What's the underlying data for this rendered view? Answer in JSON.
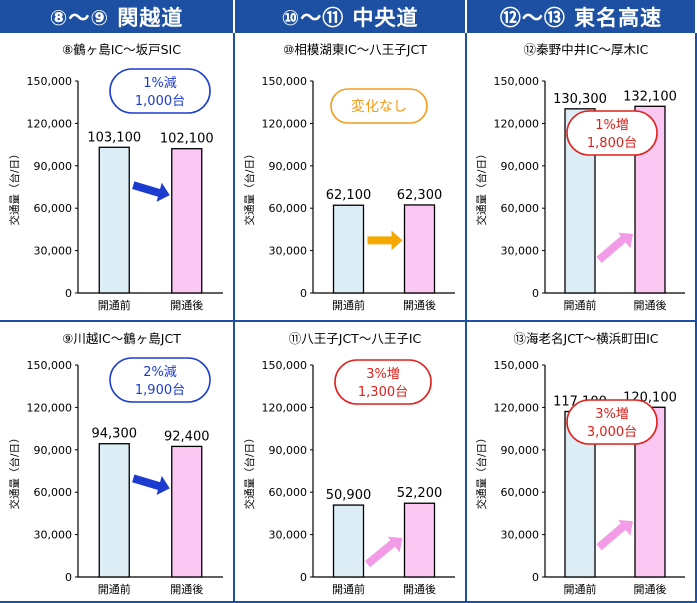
{
  "headers": [
    "⑧～⑨ 関越道",
    "⑩～⑪ 中央道",
    "⑫～⑬ 東名高速"
  ],
  "colors": {
    "header_bg": "#1d50a3",
    "bar_before": "#dcedf5",
    "bar_after": "#fbc8f4",
    "arrow_decrease": "#1c3ccf",
    "arrow_flat": "#f5a800",
    "arrow_increase": "#f39be6",
    "badge_blue": "#1c3ccf",
    "badge_orange": "#f29b1d",
    "badge_red": "#e0201a"
  },
  "chart_data": [
    {
      "type": "bar",
      "title": "⑧鶴ヶ島IC～坂戸SIC",
      "ylabel": "交通量（台/日）",
      "categories": [
        "開通前",
        "開通後"
      ],
      "values": [
        103100,
        102100
      ],
      "value_labels": [
        "103,100",
        "102,100"
      ],
      "ylim": [
        0,
        150000
      ],
      "yticks": [
        "0",
        "30,000",
        "60,000",
        "90,000",
        "120,000",
        "150,000"
      ],
      "badge": [
        "1%減",
        "1,000台"
      ],
      "trend": "decrease"
    },
    {
      "type": "bar",
      "title": "⑩相模湖東IC～八王子JCT",
      "ylabel": "交通量（台/日）",
      "categories": [
        "開通前",
        "開通後"
      ],
      "values": [
        62100,
        62300
      ],
      "value_labels": [
        "62,100",
        "62,300"
      ],
      "ylim": [
        0,
        150000
      ],
      "yticks": [
        "0",
        "30,000",
        "60,000",
        "90,000",
        "120,000",
        "150,000"
      ],
      "badge": [
        "変化なし"
      ],
      "trend": "flat"
    },
    {
      "type": "bar",
      "title": "⑫秦野中井IC～厚木IC",
      "ylabel": "交通量（台/日）",
      "categories": [
        "開通前",
        "開通後"
      ],
      "values": [
        130300,
        132100
      ],
      "value_labels": [
        "130,300",
        "132,100"
      ],
      "ylim": [
        0,
        150000
      ],
      "yticks": [
        "0",
        "30,000",
        "60,000",
        "90,000",
        "120,000",
        "150,000"
      ],
      "badge": [
        "1%増",
        "1,800台"
      ],
      "trend": "increase"
    },
    {
      "type": "bar",
      "title": "⑨川越IC～鶴ヶ島JCT",
      "ylabel": "交通量（台/日）",
      "categories": [
        "開通前",
        "開通後"
      ],
      "values": [
        94300,
        92400
      ],
      "value_labels": [
        "94,300",
        "92,400"
      ],
      "ylim": [
        0,
        150000
      ],
      "yticks": [
        "0",
        "30,000",
        "60,000",
        "90,000",
        "120,000",
        "150,000"
      ],
      "badge": [
        "2%減",
        "1,900台"
      ],
      "trend": "decrease"
    },
    {
      "type": "bar",
      "title": "⑪八王子JCT～八王子IC",
      "ylabel": "交通量（台/日）",
      "categories": [
        "開通前",
        "開通後"
      ],
      "values": [
        50900,
        52200
      ],
      "value_labels": [
        "50,900",
        "52,200"
      ],
      "ylim": [
        0,
        150000
      ],
      "yticks": [
        "0",
        "30,000",
        "60,000",
        "90,000",
        "120,000",
        "150,000"
      ],
      "badge": [
        "3%増",
        "1,300台"
      ],
      "trend": "increase"
    },
    {
      "type": "bar",
      "title": "⑬海老名JCT～横浜町田IC",
      "ylabel": "交通量（台/日）",
      "categories": [
        "開通前",
        "開通後"
      ],
      "values": [
        117100,
        120100
      ],
      "value_labels": [
        "117,100",
        "120,100"
      ],
      "ylim": [
        0,
        150000
      ],
      "yticks": [
        "0",
        "30,000",
        "60,000",
        "90,000",
        "120,000",
        "150,000"
      ],
      "badge": [
        "3%増",
        "3,000台"
      ],
      "trend": "increase"
    }
  ]
}
